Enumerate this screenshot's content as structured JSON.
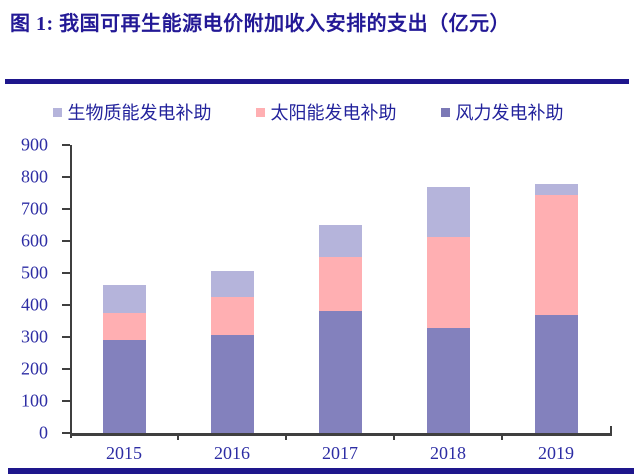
{
  "title": "图 1: 我国可再生能源电价附加收入安排的支出（亿元）",
  "colors": {
    "title": "#231996",
    "divider": "#1e168c",
    "axis": "#3f3f3f",
    "tick_label": "#2d2da4",
    "legend_text": "#23239c"
  },
  "chart_data": {
    "type": "bar",
    "stacked": true,
    "title": "我国可再生能源电价附加收入安排的支出（亿元）",
    "unit": "亿元",
    "categories": [
      "2015",
      "2016",
      "2017",
      "2018",
      "2019"
    ],
    "series": [
      {
        "name": "风力发电补助",
        "color": "#8381bd",
        "values": [
          290,
          305,
          380,
          327,
          368
        ]
      },
      {
        "name": "太阳能发电补助",
        "color": "#ffafb2",
        "values": [
          85,
          120,
          170,
          285,
          377
        ]
      },
      {
        "name": "生物质能发电补助",
        "color": "#b5b4db",
        "values": [
          87,
          80,
          100,
          158,
          33
        ]
      }
    ],
    "totals": [
      462,
      505,
      650,
      770,
      778
    ],
    "legend": [
      {
        "label": "生物质能发电补助",
        "color": "#b5b4db"
      },
      {
        "label": "太阳能发电补助",
        "color": "#ffafb2"
      },
      {
        "label": "风力发电补助",
        "color": "#7b79b6"
      }
    ],
    "legend_position": "top",
    "ylim": [
      0,
      900
    ],
    "ytick_step": 100,
    "grid": false
  }
}
